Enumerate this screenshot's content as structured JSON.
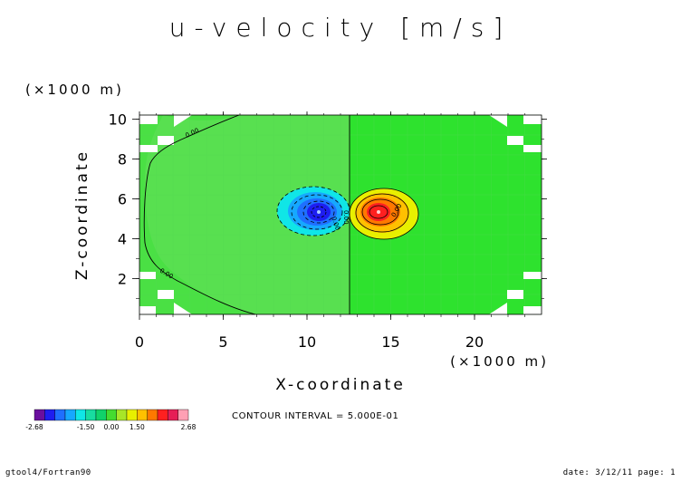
{
  "chart_data": {
    "type": "heatmap",
    "title": "u-velocity [m/s]",
    "xlabel": "X-coordinate",
    "ylabel": "Z-coordinate",
    "x_unit": "(×1000 m)",
    "y_unit": "(×1000 m)",
    "xlim": [
      0,
      24
    ],
    "ylim": [
      0.2,
      10.2
    ],
    "x_ticks": [
      0,
      5,
      10,
      15,
      20
    ],
    "y_ticks": [
      2,
      4,
      6,
      8,
      10
    ],
    "contour_interval_text": "CONTOUR INTERVAL = 5.000E-01",
    "contour_labels": [
      "0.00",
      "0.00",
      "0.00",
      "0.00",
      "0.00"
    ],
    "colorbar": {
      "colors": [
        "#6a0f9e",
        "#1e1ef0",
        "#1f6fff",
        "#16a8ff",
        "#10e6e6",
        "#18dca0",
        "#10d26a",
        "#44dc30",
        "#a8e628",
        "#e8f000",
        "#ffc000",
        "#ff7800",
        "#ff2020",
        "#e61e56",
        "#ffa0b4"
      ],
      "tick_labels": [
        "-2.68",
        "-1.50",
        "0.00",
        "1.50",
        "2.68"
      ]
    },
    "features": [
      {
        "type": "min",
        "x": 11.0,
        "z": 5.3,
        "value": -2.68
      },
      {
        "type": "max",
        "x": 14.0,
        "z": 5.3,
        "value": 2.68
      }
    ]
  },
  "footer": {
    "left": "gtool4/Fortran90",
    "right": "date: 3/12/11 page: 1"
  }
}
